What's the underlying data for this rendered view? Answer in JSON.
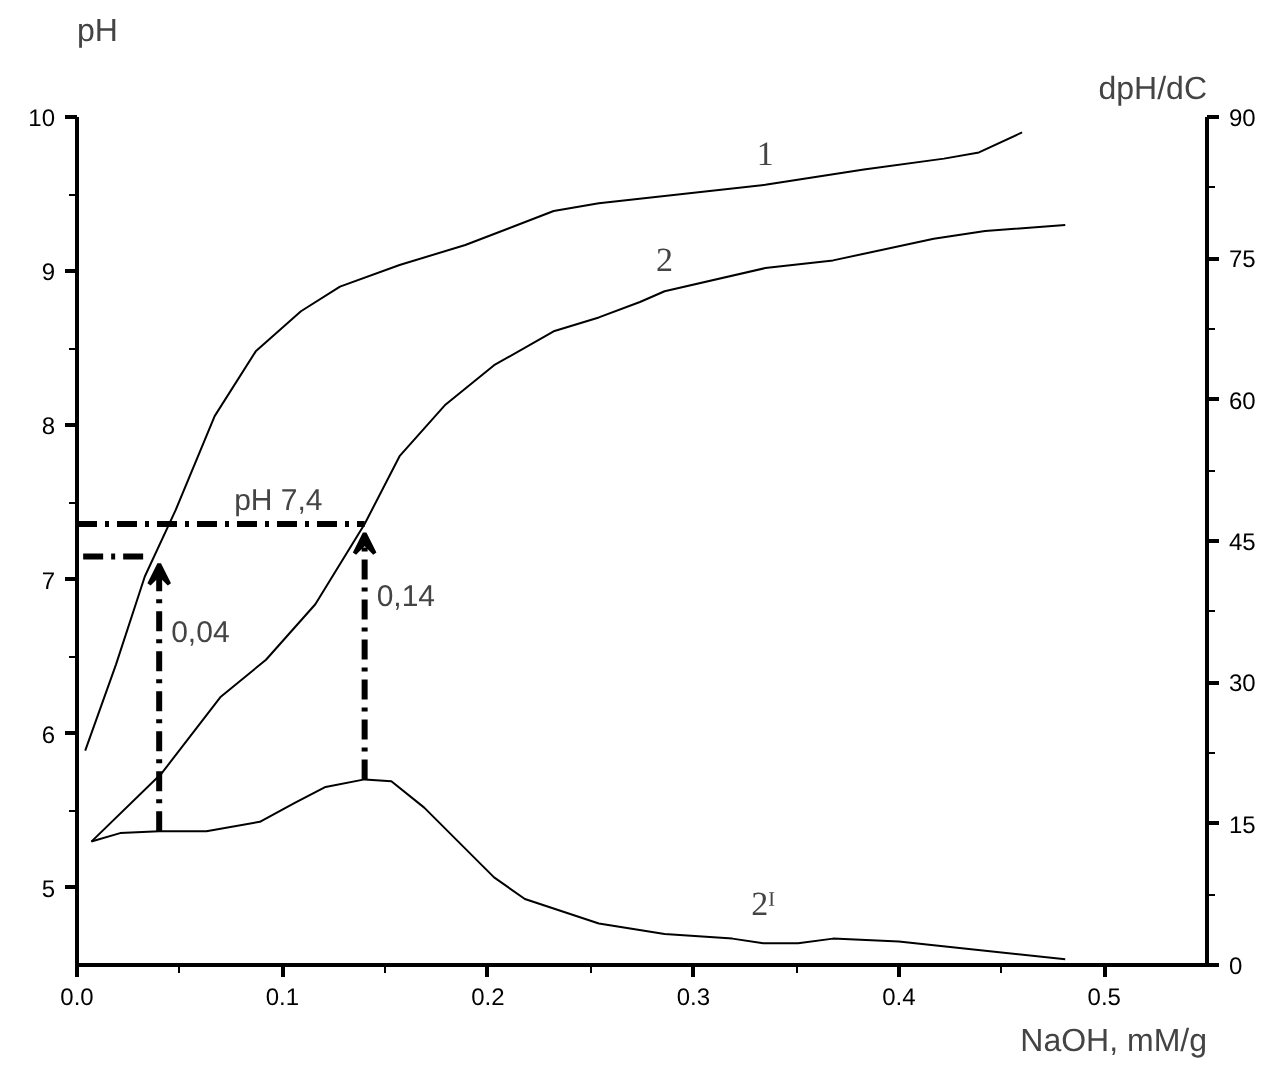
{
  "chart_data": {
    "type": "line",
    "xlabel": "NaOH, mM/g",
    "ylabel": "pH",
    "y2label": "dpH/dC",
    "xlim": [
      0,
      0.55
    ],
    "xticks": [
      {
        "value": 0,
        "label": "0.0"
      },
      {
        "value": 0.1,
        "label": "0.1"
      },
      {
        "value": 0.2,
        "label": "0.2"
      },
      {
        "value": 0.3,
        "label": "0.3"
      },
      {
        "value": 0.4,
        "label": "0.4"
      },
      {
        "value": 0.5,
        "label": "0.5"
      }
    ],
    "ylim": [
      4.5,
      10
    ],
    "yticks": [
      5,
      6,
      7,
      8,
      9,
      10
    ],
    "y2lim": [
      0,
      90
    ],
    "y2ticks": [
      0,
      15,
      30,
      45,
      60,
      75,
      90
    ],
    "grid": false,
    "marker": "none",
    "series": [
      {
        "name": "1",
        "color": "#000000",
        "x": [
          0.004,
          0.019,
          0.033,
          0.048,
          0.067,
          0.087,
          0.109,
          0.128,
          0.157,
          0.189,
          0.232,
          0.254,
          0.335,
          0.383,
          0.422,
          0.439,
          0.46
        ],
        "values": [
          5.89,
          6.45,
          7.02,
          7.45,
          8.06,
          8.48,
          8.74,
          8.9,
          9.04,
          9.17,
          9.39,
          9.44,
          9.56,
          9.66,
          9.73,
          9.77,
          9.9
        ]
      },
      {
        "name": "2",
        "color": "#000000",
        "x": [
          0.007,
          0.041,
          0.07,
          0.092,
          0.116,
          0.14,
          0.157,
          0.179,
          0.203,
          0.232,
          0.254,
          0.274,
          0.286,
          0.335,
          0.368,
          0.417,
          0.442,
          0.481
        ],
        "values": [
          5.3,
          5.74,
          6.24,
          6.48,
          6.84,
          7.36,
          7.8,
          8.13,
          8.39,
          8.61,
          8.7,
          8.8,
          8.87,
          9.02,
          9.07,
          9.21,
          9.26,
          9.3
        ]
      },
      {
        "name": "2ᴵ",
        "color": "#000000",
        "axis": "y2",
        "x": [
          0.007,
          0.021,
          0.04,
          0.063,
          0.089,
          0.106,
          0.121,
          0.14,
          0.153,
          0.169,
          0.203,
          0.218,
          0.254,
          0.286,
          0.319,
          0.334,
          0.351,
          0.368,
          0.4,
          0.417,
          0.481
        ],
        "values": [
          13.1,
          14.0,
          14.2,
          14.2,
          15.2,
          17.2,
          18.9,
          19.7,
          19.5,
          16.7,
          9.3,
          7.0,
          4.4,
          3.3,
          2.8,
          2.3,
          2.3,
          2.8,
          2.5,
          2.1,
          0.6
        ]
      },
      {
        "name": "pH 7,4",
        "color": "#000000",
        "line_style": "dashed",
        "x": [
          0,
          0.14
        ],
        "values": [
          7.36,
          7.36
        ]
      },
      {
        "color": "#000000",
        "line_style": "dashed",
        "x": [
          0.003,
          0.035
        ],
        "values": [
          7.15,
          7.15
        ]
      }
    ],
    "annotations": [
      {
        "text": "0,04",
        "x": 0.04,
        "y": 7.1
      },
      {
        "text": "0,14",
        "x": 0.14,
        "y": 7.3
      }
    ]
  }
}
